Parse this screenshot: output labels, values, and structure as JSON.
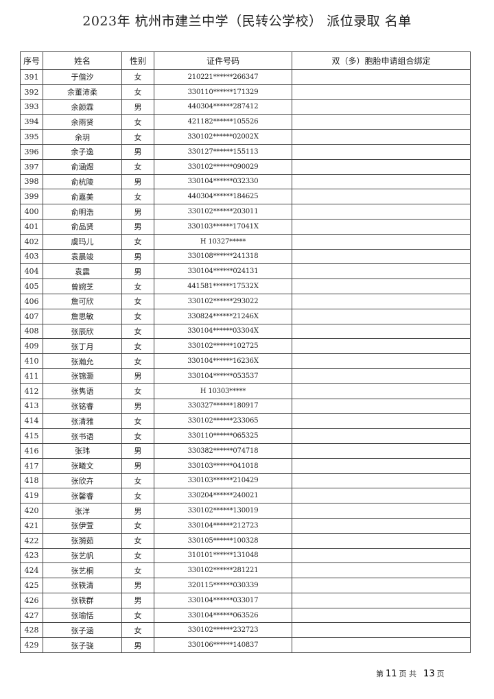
{
  "title": "2023年 杭州市建兰中学（民转公学校） 派位录取 名单",
  "table": {
    "headers": [
      "序号",
      "姓名",
      "性别",
      "证件号码",
      "双（多）胞胎申请组合绑定"
    ],
    "rows": [
      [
        "391",
        "于偕汐",
        "女",
        "210221******266347",
        ""
      ],
      [
        "392",
        "余董沛柔",
        "女",
        "330110******171329",
        ""
      ],
      [
        "393",
        "余颜霖",
        "男",
        "440304******287412",
        ""
      ],
      [
        "394",
        "余雨贤",
        "女",
        "421182******105526",
        ""
      ],
      [
        "395",
        "余玥",
        "女",
        "330102******02002X",
        ""
      ],
      [
        "396",
        "余子逸",
        "男",
        "330127******155113",
        ""
      ],
      [
        "397",
        "俞涵煜",
        "女",
        "330102******090029",
        ""
      ],
      [
        "398",
        "俞杭陵",
        "男",
        "330104******032330",
        ""
      ],
      [
        "399",
        "俞嘉美",
        "女",
        "440304******184625",
        ""
      ],
      [
        "400",
        "俞明浩",
        "男",
        "330102******203011",
        ""
      ],
      [
        "401",
        "俞品贤",
        "男",
        "330103******17041X",
        ""
      ],
      [
        "402",
        "虞玛儿",
        "女",
        "H 10327*****",
        ""
      ],
      [
        "403",
        "袁晨竣",
        "男",
        "330108******241318",
        ""
      ],
      [
        "404",
        "袁震",
        "男",
        "330104******024131",
        ""
      ],
      [
        "405",
        "曾婉芝",
        "女",
        "441581******17532X",
        ""
      ],
      [
        "406",
        "詹可欣",
        "女",
        "330102******293022",
        ""
      ],
      [
        "407",
        "詹思敏",
        "女",
        "330824******21246X",
        ""
      ],
      [
        "408",
        "张辰欣",
        "女",
        "330104******03304X",
        ""
      ],
      [
        "409",
        "张丁月",
        "女",
        "330102******102725",
        ""
      ],
      [
        "410",
        "张瀚允",
        "女",
        "330104******16236X",
        ""
      ],
      [
        "411",
        "张锦灏",
        "男",
        "330104******053537",
        ""
      ],
      [
        "412",
        "张隽语",
        "女",
        "H 10303*****",
        ""
      ],
      [
        "413",
        "张铭睿",
        "男",
        "330327******180917",
        ""
      ],
      [
        "414",
        "张清雅",
        "女",
        "330102******233065",
        ""
      ],
      [
        "415",
        "张书语",
        "女",
        "330110******065325",
        ""
      ],
      [
        "416",
        "张玮",
        "男",
        "330382******074718",
        ""
      ],
      [
        "417",
        "张曦文",
        "男",
        "330103******041018",
        ""
      ],
      [
        "418",
        "张欣卉",
        "女",
        "330103******210429",
        ""
      ],
      [
        "419",
        "张馨睿",
        "女",
        "330204******240021",
        ""
      ],
      [
        "420",
        "张洋",
        "男",
        "330102******130019",
        ""
      ],
      [
        "421",
        "张伊萱",
        "女",
        "330104******212723",
        ""
      ],
      [
        "422",
        "张漪茹",
        "女",
        "330105******100328",
        ""
      ],
      [
        "423",
        "张艺帆",
        "女",
        "310101******131048",
        ""
      ],
      [
        "424",
        "张艺桐",
        "女",
        "330102******281221",
        ""
      ],
      [
        "425",
        "张轶清",
        "男",
        "320115******030339",
        ""
      ],
      [
        "426",
        "张轶群",
        "男",
        "330104******033017",
        ""
      ],
      [
        "427",
        "张瑜恬",
        "女",
        "330104******063526",
        ""
      ],
      [
        "428",
        "张子涵",
        "女",
        "330102******232723",
        ""
      ],
      [
        "429",
        "张子骁",
        "男",
        "330106******140837",
        ""
      ]
    ]
  },
  "footer": {
    "prefix": "第",
    "current_page": "11",
    "middle": "页 共",
    "total_pages": "13",
    "suffix": "页"
  }
}
